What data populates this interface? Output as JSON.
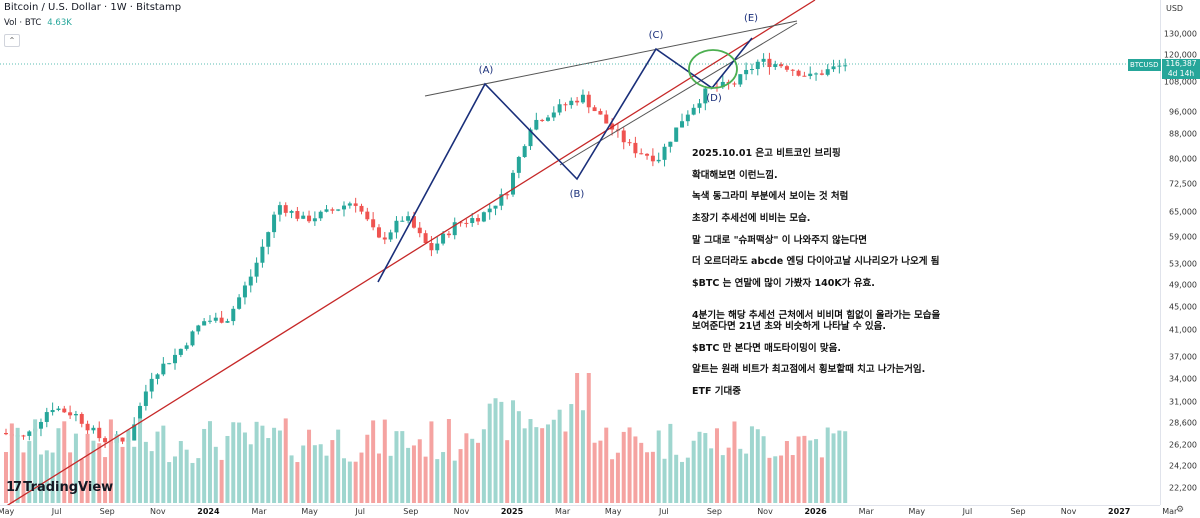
{
  "header": {
    "title": "Bitcoin / U.S. Dollar · 1W · Bitstamp",
    "volume_label": "Vol · BTC",
    "volume_value": "4.63K",
    "collapse_glyph": "⌃"
  },
  "price_axis": {
    "currency": "USD",
    "ticks": [
      "130,000",
      "120,000",
      "108,000",
      "96,000",
      "88,000",
      "80,000",
      "72,500",
      "65,000",
      "59,000",
      "53,000",
      "49,000",
      "45,000",
      "41,000",
      "37,000",
      "34,000",
      "31,000",
      "28,600",
      "26,200",
      "24,200",
      "22,200"
    ],
    "tick_values": [
      130000,
      120000,
      108000,
      96000,
      88000,
      80000,
      72500,
      65000,
      59000,
      53000,
      49000,
      45000,
      41000,
      37000,
      34000,
      31000,
      28600,
      26200,
      24200,
      22200
    ]
  },
  "price_tag": {
    "symbol": "BTCUSD",
    "price": "116,387",
    "countdown": "4d 14h"
  },
  "time_axis": {
    "labels": [
      {
        "text": "May",
        "year": false
      },
      {
        "text": "Jul",
        "year": false
      },
      {
        "text": "Sep",
        "year": false
      },
      {
        "text": "Nov",
        "year": false
      },
      {
        "text": "2024",
        "year": true
      },
      {
        "text": "Mar",
        "year": false
      },
      {
        "text": "May",
        "year": false
      },
      {
        "text": "Jul",
        "year": false
      },
      {
        "text": "Sep",
        "year": false
      },
      {
        "text": "Nov",
        "year": false
      },
      {
        "text": "2025",
        "year": true
      },
      {
        "text": "Mar",
        "year": false
      },
      {
        "text": "May",
        "year": false
      },
      {
        "text": "Jul",
        "year": false
      },
      {
        "text": "Sep",
        "year": false
      },
      {
        "text": "Nov",
        "year": false
      },
      {
        "text": "2026",
        "year": true
      },
      {
        "text": "Mar",
        "year": false
      },
      {
        "text": "May",
        "year": false
      },
      {
        "text": "Jul",
        "year": false
      },
      {
        "text": "Sep",
        "year": false
      },
      {
        "text": "Nov",
        "year": false
      },
      {
        "text": "2027",
        "year": true
      },
      {
        "text": "Mar",
        "year": false
      }
    ]
  },
  "waves": [
    {
      "label": "(A)",
      "price": 106000
    },
    {
      "label": "(B)",
      "price": 74500
    },
    {
      "label": "(C)",
      "price": 123000
    },
    {
      "label": "(D)",
      "price": 108000
    },
    {
      "label": "(E)",
      "price": 140000
    }
  ],
  "note_lines": [
    "2025.10.01 은고 비트코인 브리핑",
    "확대해보면 이런느낌.",
    "녹색 동그라미 부분에서 보이는 것 처럼",
    "초장기 추세선에 비비는 모습.",
    "말 그대로 \"슈퍼떡상\" 이 나와주지 않는다면",
    "더 오르더라도 abcde 엔딩 다이아고날 시나리오가 나오게 됨",
    "$BTC 는 연말에 많이 가봤자 140K가 유효.",
    "",
    "4분기는 해당 추세선 근처에서 비비며 힘없이 올라가는 모습을",
    "보여준다면 21년 초와 비슷하게 나타날 수 있음.",
    "$BTC 만 본다면 매도타이밍이 맞음.",
    "알트는 원래 비트가 최고점에서 횡보할때 치고 나가는거임.",
    "ETF 기대중"
  ],
  "logo": {
    "text": "TradingView",
    "glyph": "17"
  },
  "colors": {
    "up": "#26a69a",
    "down": "#ef5350",
    "vol_up": "#9fd6cf",
    "vol_down": "#f5a3a1",
    "trendline_red": "#c62828",
    "wave": "#1a2f7a",
    "channel": "#555555",
    "circle": "#4caf50"
  },
  "chart_data": {
    "type": "candlestick",
    "title": "Bitcoin / U.S. Dollar · 1W · Bitstamp",
    "y_scale": "log",
    "ylim": [
      21500,
      140000
    ],
    "series": [
      {
        "name": "BTCUSD",
        "period_keys": [
          "2023-05",
          "2023-07",
          "2023-09",
          "2023-11",
          "2024-01",
          "2024-03",
          "2024-05",
          "2024-07",
          "2024-09",
          "2024-11",
          "2025-01",
          "2025-03",
          "2025-05",
          "2025-07",
          "2025-09"
        ],
        "approx_close": [
          27000,
          30000,
          26500,
          37000,
          43000,
          68000,
          67000,
          60000,
          60000,
          90000,
          95000,
          82000,
          103000,
          118000,
          114000
        ]
      }
    ],
    "last_price": 116387
  }
}
